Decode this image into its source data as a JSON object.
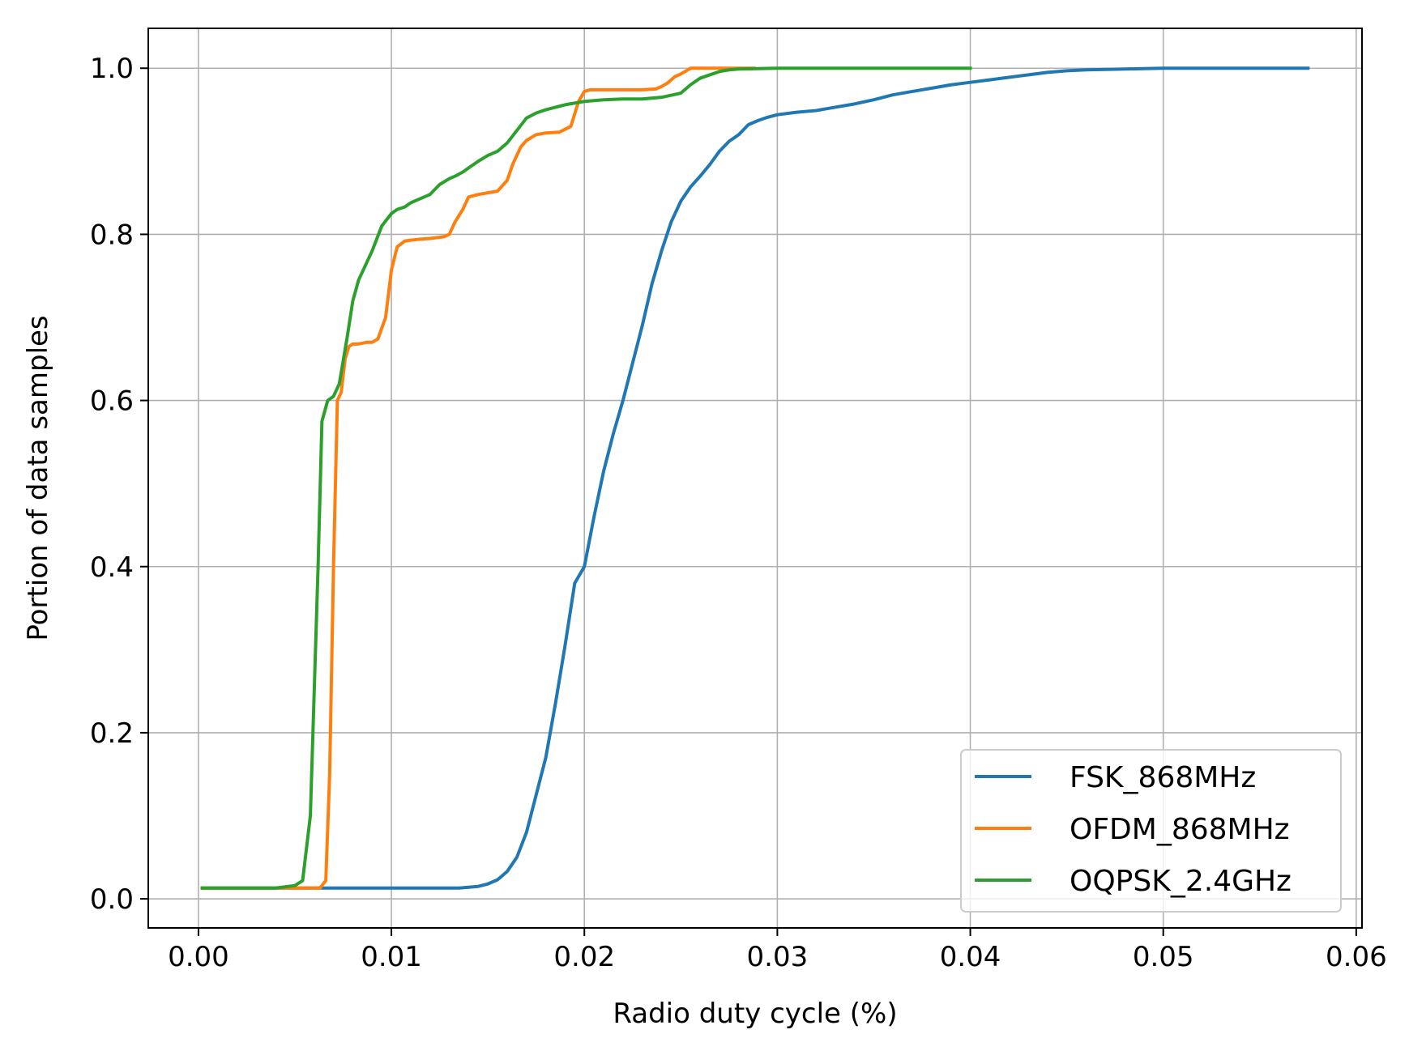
{
  "chart_data": {
    "type": "line",
    "xlabel": "Radio duty cycle (%)",
    "ylabel": "Portion of data samples",
    "xlim": [
      -0.0026,
      0.0603
    ],
    "ylim": [
      -0.035,
      1.048
    ],
    "xticks": [
      0.0,
      0.01,
      0.02,
      0.03,
      0.04,
      0.05,
      0.06
    ],
    "xtick_labels": [
      "0.00",
      "0.01",
      "0.02",
      "0.03",
      "0.04",
      "0.05",
      "0.06"
    ],
    "yticks": [
      0.0,
      0.2,
      0.4,
      0.6,
      0.8,
      1.0
    ],
    "ytick_labels": [
      "0.0",
      "0.2",
      "0.4",
      "0.6",
      "0.8",
      "1.0"
    ],
    "grid": true,
    "legend_position": "lower-right",
    "series": [
      {
        "name": "FSK_868MHz",
        "color": "#1f77b4",
        "x": [
          0.0002,
          0.0135,
          0.0145,
          0.015,
          0.0155,
          0.016,
          0.0165,
          0.017,
          0.0175,
          0.018,
          0.0185,
          0.019,
          0.0195,
          0.02,
          0.0205,
          0.021,
          0.0215,
          0.022,
          0.0225,
          0.023,
          0.0235,
          0.024,
          0.0245,
          0.025,
          0.0255,
          0.026,
          0.0265,
          0.027,
          0.0275,
          0.028,
          0.0285,
          0.029,
          0.0295,
          0.03,
          0.031,
          0.032,
          0.033,
          0.034,
          0.035,
          0.036,
          0.037,
          0.038,
          0.039,
          0.04,
          0.041,
          0.042,
          0.043,
          0.044,
          0.045,
          0.046,
          0.047,
          0.048,
          0.049,
          0.05,
          0.052,
          0.054,
          0.0575
        ],
        "y": [
          0.013,
          0.013,
          0.015,
          0.018,
          0.023,
          0.033,
          0.05,
          0.08,
          0.125,
          0.17,
          0.235,
          0.305,
          0.38,
          0.4,
          0.46,
          0.515,
          0.56,
          0.6,
          0.645,
          0.69,
          0.74,
          0.78,
          0.815,
          0.84,
          0.857,
          0.87,
          0.884,
          0.9,
          0.912,
          0.92,
          0.932,
          0.937,
          0.941,
          0.944,
          0.947,
          0.949,
          0.953,
          0.957,
          0.962,
          0.968,
          0.972,
          0.976,
          0.98,
          0.983,
          0.986,
          0.989,
          0.992,
          0.995,
          0.997,
          0.998,
          0.9985,
          0.999,
          0.9995,
          1.0,
          1.0,
          1.0,
          1.0
        ]
      },
      {
        "name": "OFDM_868MHz",
        "color": "#ff7f0e",
        "x": [
          0.0002,
          0.0063,
          0.0066,
          0.0068,
          0.007,
          0.0072,
          0.0074,
          0.0076,
          0.0078,
          0.008,
          0.0083,
          0.0087,
          0.009,
          0.0093,
          0.0097,
          0.01,
          0.0103,
          0.0107,
          0.011,
          0.0114,
          0.012,
          0.0127,
          0.013,
          0.0133,
          0.0137,
          0.014,
          0.0145,
          0.015,
          0.0155,
          0.016,
          0.0163,
          0.0167,
          0.017,
          0.0175,
          0.018,
          0.0187,
          0.0193,
          0.0197,
          0.02,
          0.0203,
          0.0207,
          0.021,
          0.022,
          0.023,
          0.0237,
          0.024,
          0.0243,
          0.0247,
          0.025,
          0.0255,
          0.026,
          0.027,
          0.0288
        ],
        "y": [
          0.013,
          0.013,
          0.022,
          0.15,
          0.4,
          0.6,
          0.61,
          0.65,
          0.665,
          0.668,
          0.668,
          0.67,
          0.67,
          0.674,
          0.7,
          0.757,
          0.785,
          0.792,
          0.793,
          0.794,
          0.795,
          0.797,
          0.8,
          0.815,
          0.83,
          0.845,
          0.848,
          0.85,
          0.852,
          0.865,
          0.885,
          0.905,
          0.913,
          0.92,
          0.922,
          0.923,
          0.93,
          0.96,
          0.972,
          0.974,
          0.974,
          0.974,
          0.974,
          0.974,
          0.975,
          0.978,
          0.982,
          0.99,
          0.993,
          1.0,
          1.0,
          1.0,
          1.0
        ]
      },
      {
        "name": "OQPSK_2.4GHz",
        "color": "#2ca02c",
        "x": [
          0.0002,
          0.004,
          0.005,
          0.0054,
          0.0058,
          0.006,
          0.0062,
          0.0064,
          0.0067,
          0.007,
          0.0073,
          0.0077,
          0.008,
          0.0083,
          0.0087,
          0.009,
          0.0095,
          0.01,
          0.0103,
          0.0107,
          0.011,
          0.012,
          0.0125,
          0.013,
          0.0133,
          0.0137,
          0.014,
          0.0145,
          0.015,
          0.0155,
          0.016,
          0.0165,
          0.017,
          0.0175,
          0.018,
          0.0185,
          0.019,
          0.02,
          0.021,
          0.022,
          0.023,
          0.024,
          0.025,
          0.0255,
          0.026,
          0.0265,
          0.027,
          0.0275,
          0.028,
          0.029,
          0.03,
          0.032,
          0.04
        ],
        "y": [
          0.013,
          0.013,
          0.016,
          0.022,
          0.1,
          0.25,
          0.4,
          0.575,
          0.6,
          0.605,
          0.62,
          0.675,
          0.72,
          0.745,
          0.765,
          0.78,
          0.81,
          0.825,
          0.83,
          0.833,
          0.838,
          0.848,
          0.86,
          0.867,
          0.87,
          0.875,
          0.88,
          0.888,
          0.895,
          0.9,
          0.91,
          0.925,
          0.94,
          0.946,
          0.95,
          0.953,
          0.956,
          0.96,
          0.962,
          0.963,
          0.963,
          0.965,
          0.97,
          0.98,
          0.988,
          0.992,
          0.996,
          0.998,
          0.999,
          0.9995,
          1.0,
          1.0,
          1.0
        ]
      }
    ]
  }
}
